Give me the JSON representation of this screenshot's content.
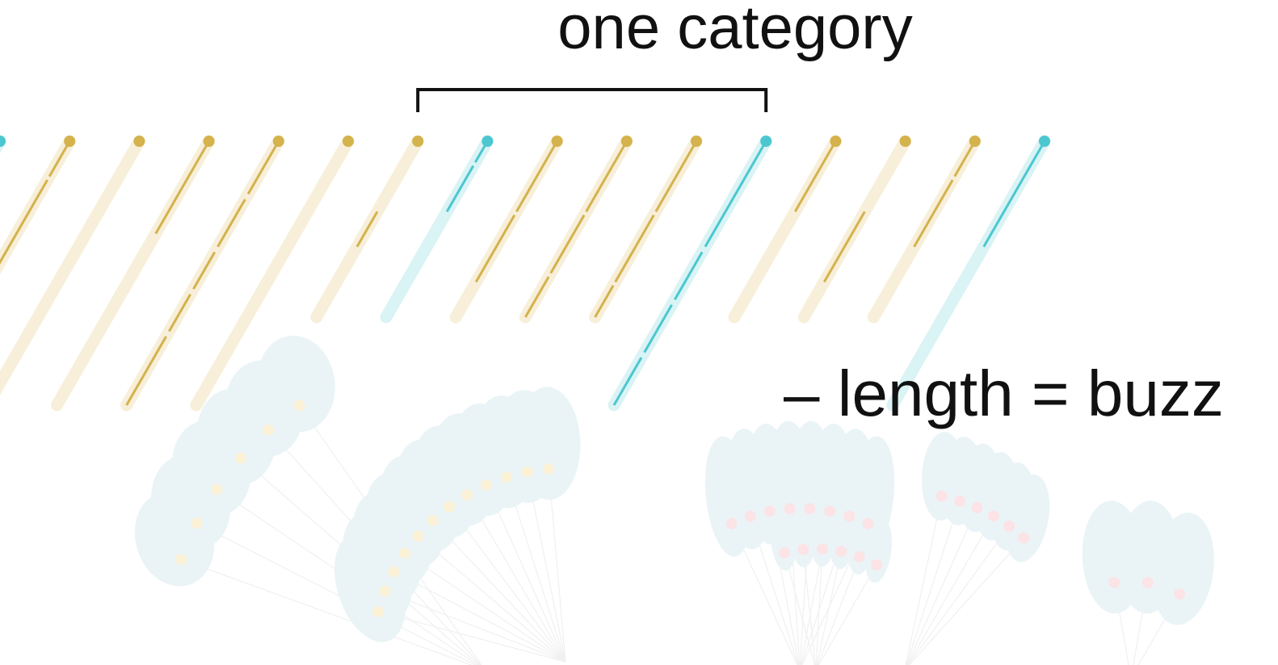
{
  "labels": {
    "category": "one category",
    "length_legend": "– length = buzz"
  },
  "colors": {
    "gold": "#d4b24c",
    "gold_pale": "#f7efd9",
    "teal": "#4cc7d0",
    "teal_pale": "#daf3f5",
    "ghost_leaf": "#eaf4f7",
    "ghost_dot_red": "#fbe3e6",
    "ghost_dot_yellow": "#fbf1d7",
    "bracket": "#111111"
  },
  "stems": [
    {
      "color": "teal",
      "length": 0.05,
      "segments": []
    },
    {
      "color": "gold",
      "length": 1.0,
      "segments": [
        [
          0.0,
          0.2
        ],
        [
          0.22,
          0.78
        ]
      ]
    },
    {
      "color": "gold",
      "length": 1.5,
      "segments": []
    },
    {
      "color": "gold",
      "length": 1.5,
      "segments": [
        [
          0.0,
          0.35
        ]
      ]
    },
    {
      "color": "gold",
      "length": 1.5,
      "segments": [
        [
          0.0,
          0.2
        ],
        [
          0.22,
          0.4
        ],
        [
          0.42,
          0.56
        ],
        [
          0.58,
          0.72
        ],
        [
          0.74,
          1.0
        ]
      ]
    },
    {
      "color": "gold",
      "length": 1.5,
      "segments": []
    },
    {
      "color": "gold",
      "length": 1.0,
      "segments": [
        [
          0.4,
          0.6
        ]
      ]
    },
    {
      "color": "teal",
      "length": 1.0,
      "segments": [
        [
          0.0,
          0.12
        ],
        [
          0.14,
          0.4
        ]
      ]
    },
    {
      "color": "gold",
      "length": 1.0,
      "segments": [
        [
          0.0,
          0.4
        ],
        [
          0.42,
          0.8
        ]
      ]
    },
    {
      "color": "gold",
      "length": 1.0,
      "segments": [
        [
          0.0,
          0.4
        ],
        [
          0.42,
          0.75
        ],
        [
          0.77,
          1.0
        ]
      ]
    },
    {
      "color": "gold",
      "length": 1.0,
      "segments": [
        [
          0.0,
          0.4
        ],
        [
          0.42,
          0.8
        ],
        [
          0.82,
          1.0
        ]
      ]
    },
    {
      "color": "teal",
      "length": 1.5,
      "segments": [
        [
          0.0,
          0.4
        ],
        [
          0.42,
          0.6
        ],
        [
          0.62,
          0.8
        ],
        [
          0.82,
          1.0
        ]
      ]
    },
    {
      "color": "gold",
      "length": 1.0,
      "segments": [
        [
          0.0,
          0.4
        ]
      ]
    },
    {
      "color": "gold",
      "length": 1.0,
      "segments": [
        [
          0.4,
          0.8
        ]
      ]
    },
    {
      "color": "gold",
      "length": 1.0,
      "segments": [
        [
          0.0,
          0.2
        ],
        [
          0.22,
          0.6
        ]
      ]
    },
    {
      "color": "teal",
      "length": 1.5,
      "segments": [
        [
          0.0,
          0.4
        ]
      ]
    }
  ],
  "bracket": {
    "from_stem": 6,
    "to_stem": 11
  }
}
